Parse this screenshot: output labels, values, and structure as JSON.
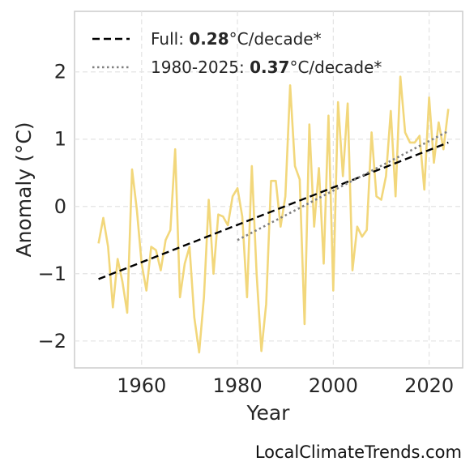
{
  "chart_data": {
    "type": "line",
    "xlabel": "Year",
    "ylabel": "Anomaly (°C)",
    "xlim": [
      1946,
      2027
    ],
    "ylim": [
      -2.4,
      2.9
    ],
    "xticks": [
      1960,
      1980,
      2000,
      2020
    ],
    "yticks": [
      -2,
      -1,
      0,
      1,
      2
    ],
    "ytick_labels": [
      "−2",
      "−1",
      "0",
      "1",
      "2"
    ],
    "grid": true,
    "legend_position": "top-left",
    "series": [
      {
        "style": "line",
        "color": "#f2d77b",
        "x": [
          1951,
          1952,
          1953,
          1954,
          1955,
          1956,
          1957,
          1958,
          1959,
          1960,
          1961,
          1962,
          1963,
          1964,
          1965,
          1966,
          1967,
          1968,
          1969,
          1970,
          1971,
          1972,
          1973,
          1974,
          1975,
          1976,
          1977,
          1978,
          1979,
          1980,
          1981,
          1982,
          1983,
          1984,
          1985,
          1986,
          1987,
          1988,
          1989,
          1990,
          1991,
          1992,
          1993,
          1994,
          1995,
          1996,
          1997,
          1998,
          1999,
          2000,
          2001,
          2002,
          2003,
          2004,
          2005,
          2006,
          2007,
          2008,
          2009,
          2010,
          2011,
          2012,
          2013,
          2014,
          2015,
          2016,
          2017,
          2018,
          2019,
          2020,
          2021,
          2022,
          2023,
          2024
        ],
        "y": [
          -0.55,
          -0.17,
          -0.6,
          -1.5,
          -0.78,
          -1.12,
          -1.58,
          0.55,
          -0.05,
          -0.85,
          -1.25,
          -0.6,
          -0.65,
          -0.95,
          -0.5,
          -0.35,
          0.85,
          -1.35,
          -0.85,
          -0.6,
          -1.65,
          -2.17,
          -1.35,
          0.1,
          -1.0,
          -0.12,
          -0.15,
          -0.28,
          0.15,
          0.27,
          -0.15,
          -1.35,
          0.6,
          -1.0,
          -2.15,
          -1.45,
          0.38,
          0.38,
          -0.3,
          0.15,
          1.8,
          0.6,
          0.4,
          -1.75,
          1.22,
          -0.3,
          0.57,
          -0.85,
          1.35,
          -1.25,
          1.55,
          0.45,
          1.53,
          -0.95,
          -0.3,
          -0.45,
          -0.35,
          1.1,
          0.15,
          0.1,
          0.45,
          1.42,
          0.15,
          1.93,
          1.1,
          0.95,
          0.95,
          1.05,
          0.25,
          1.62,
          0.65,
          1.25,
          0.85,
          1.45
        ]
      },
      {
        "style": "dashed",
        "color": "#000000",
        "x": [
          1951,
          2024
        ],
        "y": [
          -1.08,
          0.95
        ]
      },
      {
        "style": "dotted",
        "color": "#808080",
        "x": [
          1980,
          2024
        ],
        "y": [
          -0.5,
          1.12
        ]
      }
    ],
    "legend": [
      {
        "style": "dashed",
        "color": "#000000",
        "prefix": "Full: ",
        "value": "0.28",
        "suffix": "°C/decade*"
      },
      {
        "style": "dotted",
        "color": "#808080",
        "prefix": "1980-2025: ",
        "value": "0.37",
        "suffix": "°C/decade*"
      }
    ]
  },
  "watermark": "LocalClimateTrends.com"
}
